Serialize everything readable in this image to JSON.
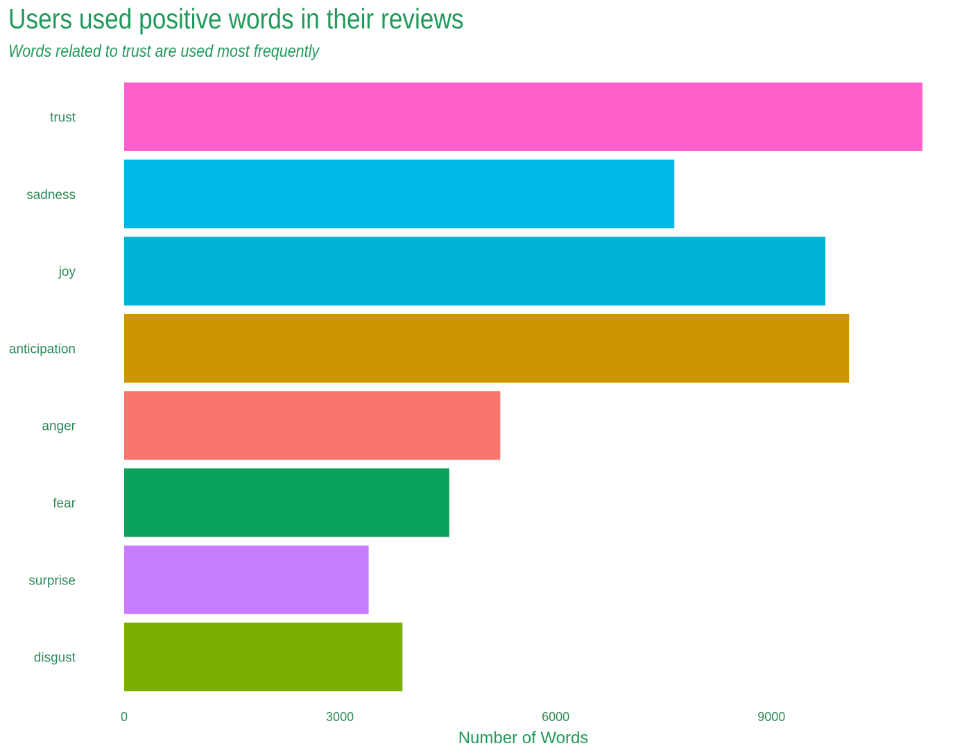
{
  "chart_data": {
    "type": "bar",
    "orientation": "horizontal",
    "title": "Users used positive words in their reviews",
    "subtitle": "Words related to trust are used most frequently",
    "xlabel": "Number of Words",
    "ylabel": "",
    "categories": [
      "trust",
      "sadness",
      "joy",
      "anticipation",
      "anger",
      "fear",
      "surprise",
      "disgust"
    ],
    "values": [
      11100,
      7650,
      9750,
      10080,
      5230,
      4520,
      3400,
      3870
    ],
    "colors": [
      "#FF61CC",
      "#00B8E7",
      "#00B2D4",
      "#CD9600",
      "#F8766D",
      "#0AA15B",
      "#C77CFF",
      "#7CAE00"
    ],
    "xlim": [
      0,
      11100
    ],
    "xticks": [
      0,
      3000,
      6000,
      9000
    ],
    "xtick_labels": [
      "0",
      "3000",
      "6000",
      "9000"
    ],
    "grid": false,
    "legend": "none"
  }
}
